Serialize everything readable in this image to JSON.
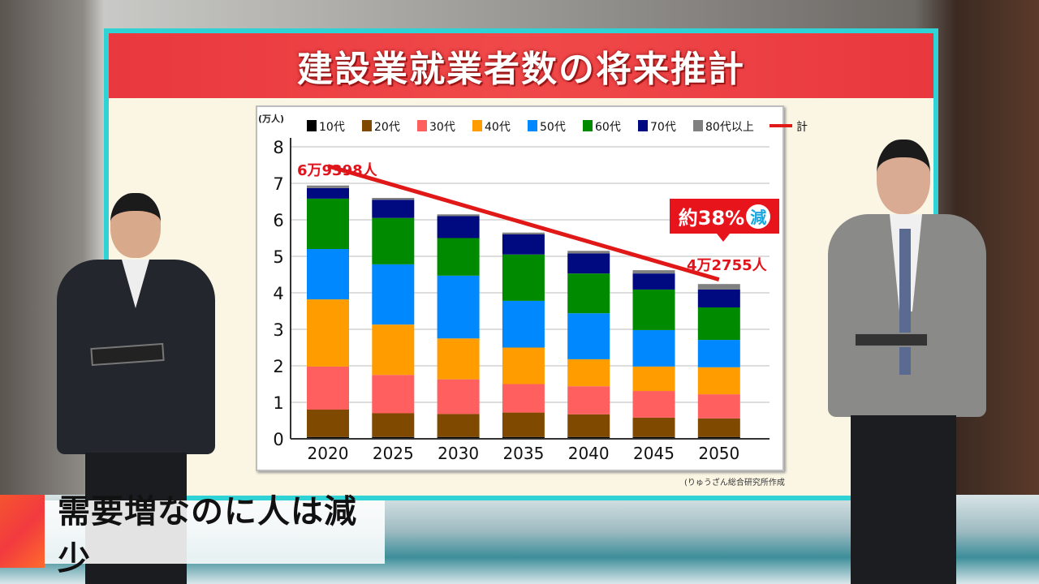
{
  "title": "建設業就業者数の将来推計",
  "caption": "需要増なのに人は減少",
  "source": "(りゅうざん総合研究所作成",
  "chart_data": {
    "type": "bar",
    "stacked": true,
    "title": "建設業就業者数の将来推計",
    "ylabel": "(万人)",
    "ylim": [
      0,
      8
    ],
    "yticks": [
      "0",
      "1",
      "2",
      "3",
      "4",
      "5",
      "6",
      "7",
      "8"
    ],
    "grid": true,
    "legend_position": "top",
    "categories": [
      "2020",
      "2025",
      "2030",
      "2035",
      "2040",
      "2045",
      "2050"
    ],
    "series": [
      {
        "name": "10代",
        "color": "#000000",
        "values": [
          0.05,
          0.05,
          0.05,
          0.05,
          0.05,
          0.05,
          0.05
        ]
      },
      {
        "name": "20代",
        "color": "#7f4a00",
        "values": [
          0.75,
          0.65,
          0.63,
          0.67,
          0.62,
          0.53,
          0.51
        ]
      },
      {
        "name": "30代",
        "color": "#ff5f5f",
        "values": [
          1.18,
          1.05,
          0.95,
          0.78,
          0.77,
          0.73,
          0.66
        ]
      },
      {
        "name": "40代",
        "color": "#ff9c00",
        "values": [
          1.84,
          1.38,
          1.12,
          1.0,
          0.74,
          0.67,
          0.74
        ]
      },
      {
        "name": "50代",
        "color": "#0088ff",
        "values": [
          1.38,
          1.65,
          1.72,
          1.28,
          1.26,
          1.0,
          0.75
        ]
      },
      {
        "name": "60代",
        "color": "#008a00",
        "values": [
          1.38,
          1.27,
          1.03,
          1.27,
          1.09,
          1.11,
          0.89
        ]
      },
      {
        "name": "70代",
        "color": "#000a80",
        "values": [
          0.29,
          0.5,
          0.6,
          0.55,
          0.55,
          0.44,
          0.49
        ]
      },
      {
        "name": "80代以上",
        "color": "#808080",
        "values": [
          0.07,
          0.05,
          0.05,
          0.05,
          0.07,
          0.09,
          0.15
        ]
      }
    ],
    "total_line": {
      "name": "計",
      "color": "#e01818",
      "x": [
        "2020",
        "2050"
      ],
      "values": [
        6.9398,
        4.2755
      ]
    },
    "annotations": {
      "start_label": "6万9398人",
      "end_label": "4万2755人",
      "change_prefix": "約38%",
      "change_suffix": "減"
    }
  }
}
